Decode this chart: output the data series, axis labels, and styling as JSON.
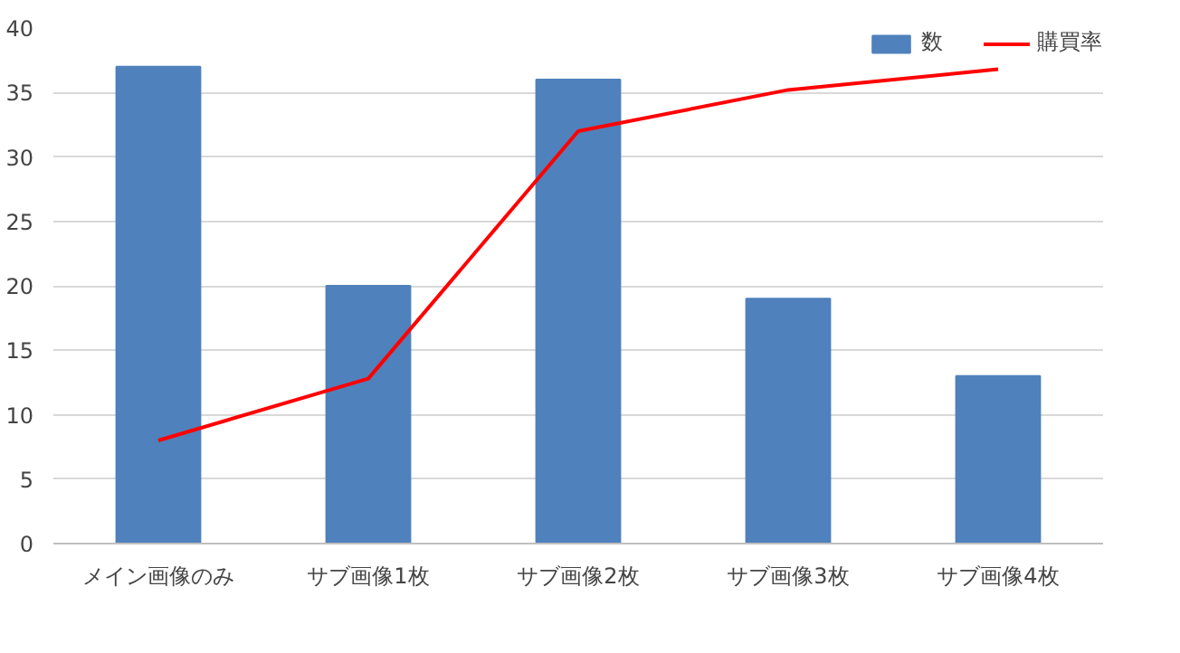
{
  "chart_data": {
    "type": "bar",
    "categories": [
      "メイン画像のみ",
      "サブ画像1枚",
      "サブ画像2枚",
      "サブ画像3枚",
      "サブ画像4枚"
    ],
    "series": [
      {
        "name": "数",
        "color": "#4f81bd",
        "values": [
          37,
          20,
          36,
          19,
          13
        ]
      },
      {
        "name": "購買率",
        "type": "line",
        "color": "#ff0000",
        "values": [
          8,
          12.8,
          32,
          35.2,
          36.8
        ]
      }
    ],
    "ylim": [
      0,
      40
    ],
    "yticks": [
      0,
      5,
      10,
      15,
      20,
      25,
      30,
      35,
      40
    ],
    "grid": "y",
    "legend": "top right",
    "marker": "none",
    "line_style": "solid"
  }
}
